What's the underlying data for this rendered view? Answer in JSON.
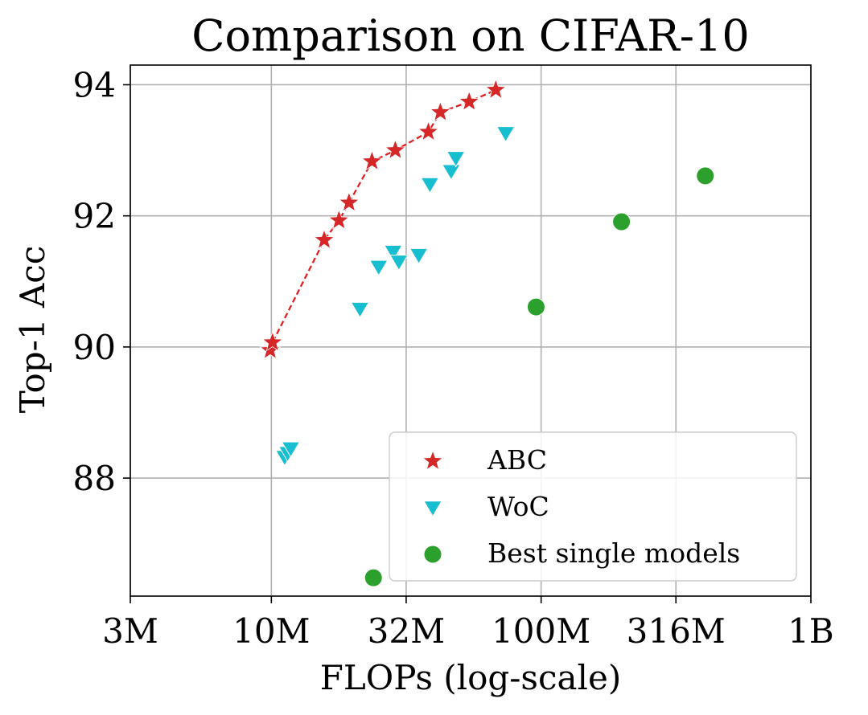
{
  "chart_data": {
    "type": "scatter",
    "title": "Comparison on CIFAR-10",
    "xlabel": "FLOPs (log-scale)",
    "ylabel": "Top-1 Acc",
    "x_scale": "log",
    "xlim": [
      3000000,
      1000000000
    ],
    "ylim": [
      86.2,
      94.3
    ],
    "x_ticks": [
      {
        "value": 3000000,
        "label": "3M"
      },
      {
        "value": 10000000,
        "label": "10M"
      },
      {
        "value": 31600000,
        "label": "32M"
      },
      {
        "value": 100000000,
        "label": "100M"
      },
      {
        "value": 316000000,
        "label": "316M"
      },
      {
        "value": 1000000000,
        "label": "1B"
      }
    ],
    "y_ticks": [
      {
        "value": 88,
        "label": "88"
      },
      {
        "value": 90,
        "label": "90"
      },
      {
        "value": 92,
        "label": "92"
      },
      {
        "value": 94,
        "label": "94"
      }
    ],
    "grid": true,
    "legend_position": "bottom-right",
    "series": [
      {
        "name": "ABC",
        "marker": "star",
        "color": "#d62728",
        "connect": true,
        "line_color": "#e31a1c",
        "points": [
          {
            "x": 9900000,
            "y": 89.95
          },
          {
            "x": 10100000,
            "y": 90.07
          },
          {
            "x": 15700000,
            "y": 91.63
          },
          {
            "x": 17800000,
            "y": 91.93
          },
          {
            "x": 19400000,
            "y": 92.2
          },
          {
            "x": 23600000,
            "y": 92.83
          },
          {
            "x": 28800000,
            "y": 93.0
          },
          {
            "x": 38200000,
            "y": 93.28
          },
          {
            "x": 42300000,
            "y": 93.58
          },
          {
            "x": 54100000,
            "y": 93.74
          },
          {
            "x": 67900000,
            "y": 93.92
          }
        ]
      },
      {
        "name": "WoC",
        "marker": "triangle-down",
        "color": "#17becf",
        "connect": false,
        "points": [
          {
            "x": 11200000,
            "y": 88.32
          },
          {
            "x": 11500000,
            "y": 88.38
          },
          {
            "x": 11800000,
            "y": 88.45
          },
          {
            "x": 21300000,
            "y": 90.58
          },
          {
            "x": 25000000,
            "y": 91.22
          },
          {
            "x": 28300000,
            "y": 91.45
          },
          {
            "x": 29700000,
            "y": 91.3
          },
          {
            "x": 35200000,
            "y": 91.4
          },
          {
            "x": 38700000,
            "y": 92.48
          },
          {
            "x": 46400000,
            "y": 92.68
          },
          {
            "x": 48300000,
            "y": 92.88
          },
          {
            "x": 73900000,
            "y": 93.26
          }
        ]
      },
      {
        "name": "Best single models",
        "marker": "circle",
        "color": "#2ca02c",
        "connect": false,
        "points": [
          {
            "x": 23900000,
            "y": 86.48
          },
          {
            "x": 95800000,
            "y": 90.61
          },
          {
            "x": 198600000,
            "y": 91.91
          },
          {
            "x": 406000000,
            "y": 92.61
          }
        ]
      }
    ]
  }
}
